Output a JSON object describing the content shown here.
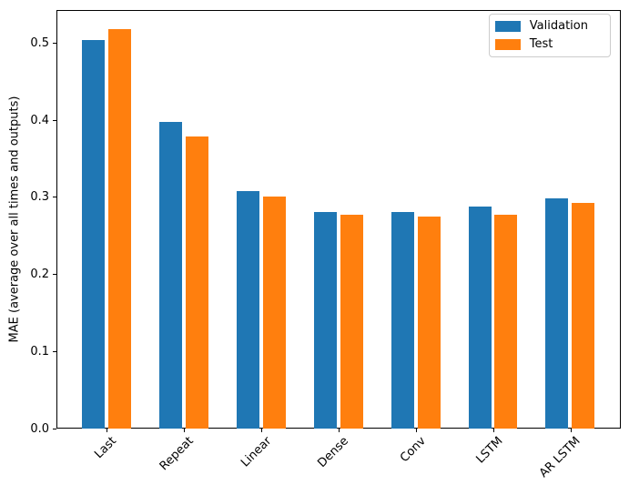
{
  "chart_data": {
    "type": "bar",
    "title": "",
    "categories": [
      "Last",
      "Repeat",
      "Linear",
      "Dense",
      "Conv",
      "LSTM",
      "AR LSTM"
    ],
    "series": [
      {
        "name": "Validation",
        "color": "#1f77b4",
        "values": [
          0.503,
          0.397,
          0.307,
          0.281,
          0.28,
          0.287,
          0.298
        ]
      },
      {
        "name": "Test",
        "color": "#ff7f0e",
        "values": [
          0.517,
          0.378,
          0.3,
          0.277,
          0.274,
          0.277,
          0.292
        ]
      }
    ],
    "xlabel": "",
    "ylabel": "MAE (average over all times and outputs)",
    "ylim": [
      0,
      0.542
    ],
    "yticks": [
      0.0,
      0.1,
      0.2,
      0.3,
      0.4,
      0.5
    ],
    "ytick_labels": [
      "0.0",
      "0.1",
      "0.2",
      "0.3",
      "0.4",
      "0.5"
    ],
    "grid": false,
    "legend_position": "upper right",
    "axis_color": "#000000",
    "background_color": "#ffffff"
  }
}
